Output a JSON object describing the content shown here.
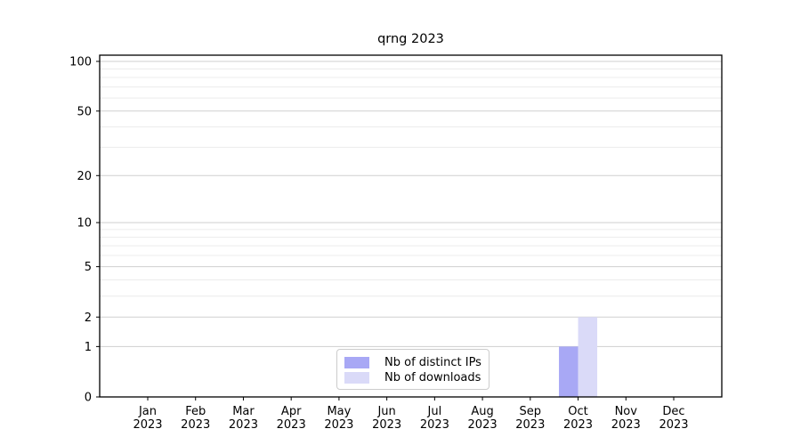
{
  "chart_data": {
    "type": "bar",
    "title": "qrng 2023",
    "categories": [
      "Jan 2023",
      "Feb 2023",
      "Mar 2023",
      "Apr 2023",
      "May 2023",
      "Jun 2023",
      "Jul 2023",
      "Aug 2023",
      "Sep 2023",
      "Oct 2023",
      "Nov 2023",
      "Dec 2023"
    ],
    "series": [
      {
        "name": "Nb of distinct IPs",
        "color": "#a8a8f5",
        "values": [
          0,
          0,
          0,
          0,
          0,
          0,
          0,
          0,
          0,
          1,
          0,
          0
        ]
      },
      {
        "name": "Nb of downloads",
        "color": "#dadaf8",
        "values": [
          0,
          0,
          0,
          0,
          0,
          0,
          0,
          0,
          0,
          2,
          0,
          0
        ]
      }
    ],
    "xlabel": "",
    "ylabel": "",
    "yscale": "log1p",
    "ylim": [
      0,
      109
    ],
    "y_major_ticks": [
      0,
      1,
      2,
      5,
      10,
      20,
      50,
      100
    ],
    "y_minor_gridlines": [
      3,
      4,
      6,
      7,
      8,
      9,
      30,
      40,
      60,
      70,
      80,
      90
    ],
    "grid": true,
    "legend_position": "lower center"
  },
  "style": {
    "major_grid_color": "#cfcfcf",
    "minor_grid_color": "#ececec",
    "spine_color": "#000000",
    "tick_color": "#000000",
    "text_color": "#000000"
  }
}
